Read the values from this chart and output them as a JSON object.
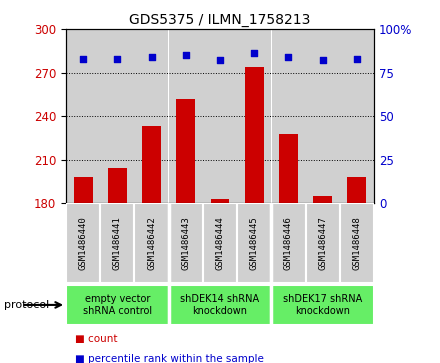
{
  "title": "GDS5375 / ILMN_1758213",
  "samples": [
    "GSM1486440",
    "GSM1486441",
    "GSM1486442",
    "GSM1486443",
    "GSM1486444",
    "GSM1486445",
    "GSM1486446",
    "GSM1486447",
    "GSM1486448"
  ],
  "counts": [
    198,
    204,
    233,
    252,
    183,
    274,
    228,
    185,
    198
  ],
  "percentiles": [
    83,
    83,
    84,
    85,
    82,
    86,
    84,
    82,
    83
  ],
  "ylim_left": [
    180,
    300
  ],
  "ylim_right": [
    0,
    100
  ],
  "yticks_left": [
    180,
    210,
    240,
    270,
    300
  ],
  "yticks_right": [
    0,
    25,
    50,
    75,
    100
  ],
  "bar_color": "#cc0000",
  "dot_color": "#0000cc",
  "group_boundaries": [
    2.5,
    5.5
  ],
  "group_labels": [
    "empty vector\nshRNA control",
    "shDEK14 shRNA\nknockdown",
    "shDEK17 shRNA\nknockdown"
  ],
  "protocol_label": "protocol",
  "legend_count_label": "count",
  "legend_pct_label": "percentile rank within the sample",
  "background_color": "#ffffff",
  "plot_bg_color": "#e8e8e8",
  "bar_bg_color": "#d0d0d0",
  "green_color": "#66ee66",
  "title_fontsize": 10,
  "tick_fontsize": 8.5
}
